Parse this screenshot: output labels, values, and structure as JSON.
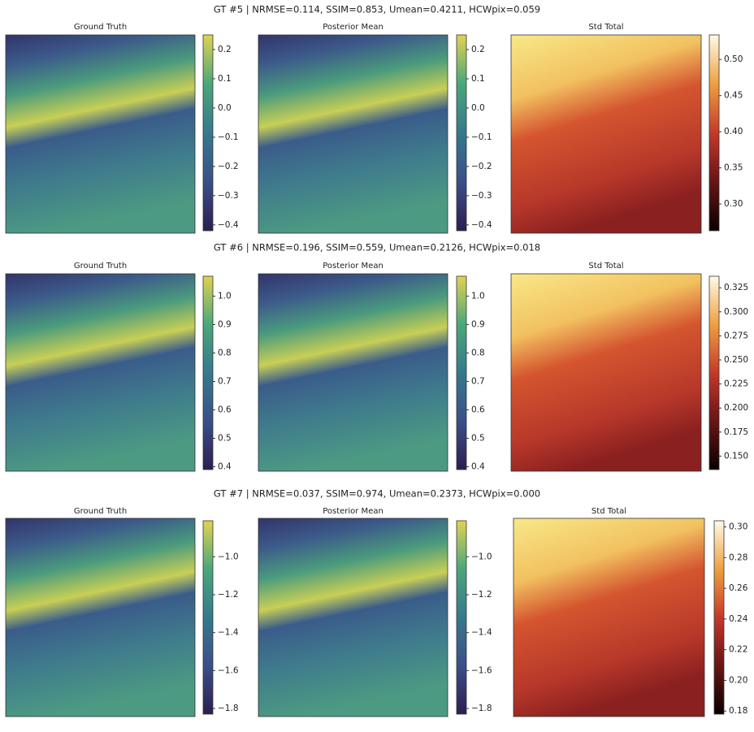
{
  "rows": [
    {
      "title": "GT #5 | NRMSE=0.114, SSIM=0.853, Umean=0.4211, HCWpix=0.059",
      "panels": [
        {
          "type": "heatmap",
          "title": "Ground Truth",
          "cmap": "viridis",
          "clim": [
            -0.42,
            0.25
          ],
          "ticks": [
            {
              "value": -0.4,
              "label": "−0.4"
            },
            {
              "value": -0.3,
              "label": "−0.3"
            },
            {
              "value": -0.2,
              "label": "−0.2"
            },
            {
              "value": -0.1,
              "label": "−0.1"
            },
            {
              "value": 0,
              "label": "0.0"
            },
            0.1,
            0.2
          ]
        },
        {
          "type": "heatmap",
          "title": "Posterior Mean",
          "cmap": "viridis",
          "clim": [
            -0.42,
            0.25
          ],
          "ticks": [
            {
              "value": -0.4,
              "label": "−0.4"
            },
            {
              "value": -0.3,
              "label": "−0.3"
            },
            {
              "value": -0.2,
              "label": "−0.2"
            },
            {
              "value": -0.1,
              "label": "−0.1"
            },
            {
              "value": 0,
              "label": "0.0"
            },
            0.1,
            0.2
          ]
        },
        {
          "type": "heatmap",
          "title": "Std Total",
          "cmap": "heat",
          "clim": [
            0.263,
            0.534
          ],
          "ticks": [
            {
              "value": 0.3,
              "label": "0.30"
            },
            0.35,
            {
              "value": 0.4,
              "label": "0.40"
            },
            0.45,
            {
              "value": 0.5,
              "label": "0.50"
            }
          ]
        }
      ]
    },
    {
      "title": "GT #6 | NRMSE=0.196, SSIM=0.559, Umean=0.2126, HCWpix=0.018",
      "panels": [
        {
          "type": "heatmap",
          "title": "Ground Truth",
          "cmap": "viridis",
          "clim": [
            0.39,
            1.07
          ],
          "ticks": [
            0.4,
            0.5,
            0.6,
            0.7,
            0.8,
            0.9,
            {
              "value": 1,
              "label": "1.0"
            }
          ]
        },
        {
          "type": "heatmap",
          "title": "Posterior Mean",
          "cmap": "viridis",
          "clim": [
            0.39,
            1.07
          ],
          "ticks": [
            0.4,
            0.5,
            0.6,
            0.7,
            0.8,
            0.9,
            {
              "value": 1,
              "label": "1.0"
            }
          ]
        },
        {
          "type": "heatmap",
          "title": "Std Total",
          "cmap": "heat",
          "clim": [
            0.136,
            0.337
          ],
          "ticks": [
            {
              "value": 0.15,
              "label": "0.150"
            },
            0.175,
            {
              "value": 0.2,
              "label": "0.200"
            },
            0.225,
            {
              "value": 0.25,
              "label": "0.250"
            },
            0.275,
            {
              "value": 0.3,
              "label": "0.300"
            },
            0.325
          ]
        }
      ]
    },
    {
      "title": "GT #7 | NRMSE=0.037, SSIM=0.974, Umean=0.2373, HCWpix=0.000",
      "panels": [
        {
          "type": "heatmap",
          "title": "Ground Truth",
          "cmap": "viridis",
          "clim": [
            -1.83,
            -0.81
          ],
          "ticks": [
            {
              "value": -1.8,
              "label": "−1.8"
            },
            {
              "value": -1.6,
              "label": "−1.6"
            },
            {
              "value": -1.4,
              "label": "−1.4"
            },
            {
              "value": -1.2,
              "label": "−1.2"
            },
            {
              "value": -1,
              "label": "−1.0"
            }
          ]
        },
        {
          "type": "heatmap",
          "title": "Posterior Mean",
          "cmap": "viridis",
          "clim": [
            -1.83,
            -0.81
          ],
          "ticks": [
            {
              "value": -1.8,
              "label": "−1.8"
            },
            {
              "value": -1.6,
              "label": "−1.6"
            },
            {
              "value": -1.4,
              "label": "−1.4"
            },
            {
              "value": -1.2,
              "label": "−1.2"
            },
            {
              "value": -1,
              "label": "−1.0"
            }
          ]
        },
        {
          "type": "heatmap",
          "title": "Std Total",
          "cmap": "heat",
          "clim": [
            0.178,
            0.304
          ],
          "ticks": [
            {
              "value": 0.18,
              "label": "0.18"
            },
            {
              "value": 0.2,
              "label": "0.20"
            },
            0.22,
            0.24,
            0.26,
            0.28,
            {
              "value": 0.3,
              "label": "0.30"
            }
          ]
        }
      ]
    }
  ]
}
